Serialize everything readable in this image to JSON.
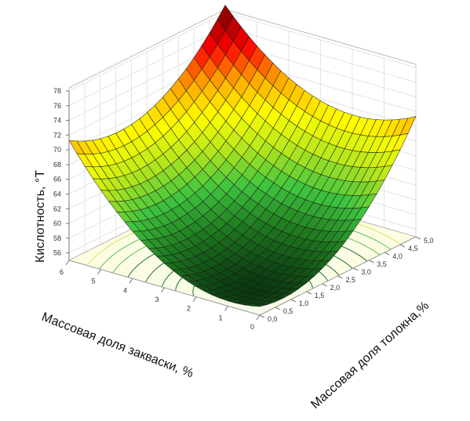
{
  "chart_data": {
    "type": "surface3d",
    "zlabel": "Кислотность, °Т",
    "xlabel": "Массовая доля закваски, %",
    "ylabel": "Массовая доля толокна,%",
    "z_ticks": [
      "56",
      "58",
      "60",
      "62",
      "64",
      "66",
      "68",
      "70",
      "72",
      "74",
      "76",
      "78"
    ],
    "x_ticks": [
      "0",
      "1",
      "2",
      "3",
      "4",
      "5",
      "6"
    ],
    "y_ticks": [
      "0,0",
      "0,5",
      "1,0",
      "1,5",
      "2,0",
      "2,5",
      "3,0",
      "3,5",
      "4,0",
      "4,5",
      "5,0"
    ],
    "xlim": [
      0,
      6
    ],
    "ylim": [
      0,
      5
    ],
    "zlim": [
      55,
      78
    ],
    "corner_values": [
      {
        "x": 0,
        "y": 0,
        "z": 55.0
      },
      {
        "x": 6,
        "y": 0,
        "z": 69.5
      },
      {
        "x": 0,
        "y": 5,
        "z": 69.5
      },
      {
        "x": 6,
        "y": 5,
        "z": 79.0
      }
    ],
    "minimum": {
      "x": 1.1,
      "y": 0.9,
      "z": 55.0
    },
    "grid": true,
    "colorscale": [
      "#0a3a10",
      "#1f7a1f",
      "#3fc53f",
      "#b5e61d",
      "#ffff00",
      "#ffa500",
      "#ff0000",
      "#8b0000"
    ]
  }
}
